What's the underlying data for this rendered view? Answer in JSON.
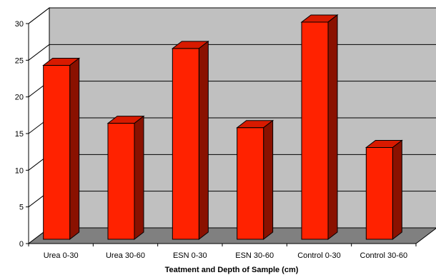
{
  "chart_data": {
    "type": "bar",
    "title": "",
    "xlabel": "Teatment and Depth of Sample (cm)",
    "ylabel": "",
    "categories": [
      "Urea 0-30",
      "Urea 30-60",
      "ESN 0-30",
      "ESN 30-60",
      "Control 0-30",
      "Control 30-60"
    ],
    "values": [
      24.3,
      16.4,
      26.6,
      15.8,
      30.2,
      13.1
    ],
    "ylim": [
      0,
      30
    ],
    "yticks": [
      0,
      5,
      10,
      15,
      20,
      25,
      30
    ],
    "grid": true,
    "legend": "none",
    "colors": {
      "bar_front": "#ff2200",
      "bar_top": "#d81a00",
      "bar_side": "#8a1100",
      "back_wall": "#c0c0c0",
      "floor": "#808080",
      "gridline": "#000000"
    }
  }
}
